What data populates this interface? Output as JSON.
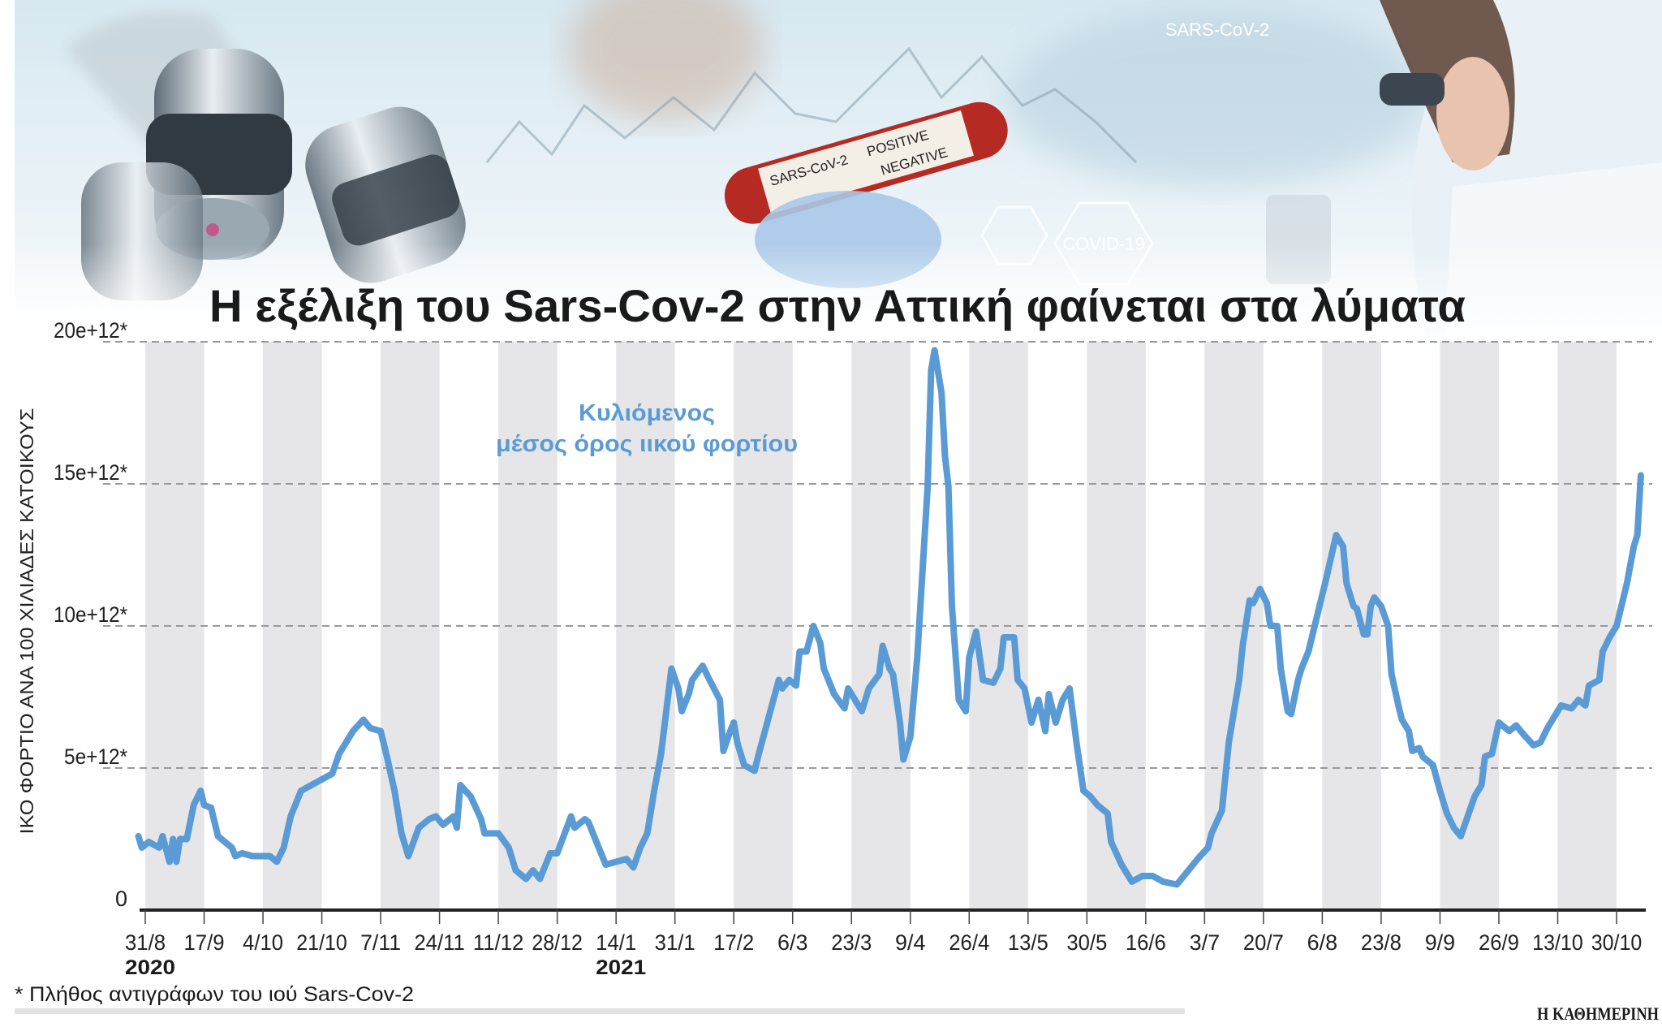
{
  "header_photo": {
    "labels": [
      "SARS-CoV-2",
      "POSITIVE",
      "NEGATIVE",
      "SARS-CoV-2",
      "COVID-19"
    ],
    "colors": {
      "sky": "#dfeef5",
      "steel": "#8a9aa6",
      "tube_red": "#c0392b",
      "glove": "#a9c8e8"
    }
  },
  "title": "Η εξέλιξη του Sars-Cov-2 στην Αττική φαίνεται στα λύματα",
  "footnote": "* Πλήθος αντιγράφων του ιού Sars-Cov-2",
  "brand": "Η ΚΑΘΗΜΕΡΙΝΗ",
  "chart_data": {
    "type": "line",
    "title": "Η εξέλιξη του Sars-Cov-2 στην Αττική φαίνεται στα λύματα",
    "ylabel": "ΙΚΟ ΦΟΡΤΙΟ ΑΝΑ 100 ΧΙΛΙΑΔΕΣ ΚΑΤΟΙΚΟΥΣ",
    "xlabel": "",
    "y_unit_multiplier": "e+12",
    "ylim": [
      0,
      20
    ],
    "yticks": [
      {
        "value": 0,
        "label": "0"
      },
      {
        "value": 5,
        "label": "5e+12*"
      },
      {
        "value": 10,
        "label": "10e+12*"
      },
      {
        "value": 15,
        "label": "15e+12*"
      },
      {
        "value": 20,
        "label": "20e+12*"
      }
    ],
    "xticks": [
      "31/8",
      "17/9",
      "4/10",
      "21/10",
      "7/11",
      "24/11",
      "11/12",
      "28/12",
      "14/1",
      "31/1",
      "17/2",
      "6/3",
      "23/3",
      "9/4",
      "26/4",
      "13/5",
      "30/5",
      "16/6",
      "3/7",
      "20/7",
      "6/8",
      "23/8",
      "9/9",
      "26/9",
      "13/10",
      "30/10"
    ],
    "year_labels": [
      {
        "label": "2020",
        "at_tick": "31/8"
      },
      {
        "label": "2021",
        "at_tick": "14/1"
      }
    ],
    "grid": "horizontal dashed",
    "background": "alternating grey/white vertical bands between ticks",
    "annotation": {
      "line1": "Κυλιόμενος",
      "line2": "μέσος όρος ιικού φορτίου"
    },
    "series": [
      {
        "name": "Κυλιόμενος μέσος όρος ιικού φορτίου",
        "color": "#5b9bd5",
        "points": [
          [
            "2020-08-29",
            2.6
          ],
          [
            "2020-08-30",
            2.2
          ],
          [
            "2020-09-01",
            2.4
          ],
          [
            "2020-09-04",
            2.2
          ],
          [
            "2020-09-05",
            2.6
          ],
          [
            "2020-09-07",
            1.7
          ],
          [
            "2020-09-08",
            2.5
          ],
          [
            "2020-09-09",
            1.7
          ],
          [
            "2020-09-10",
            2.5
          ],
          [
            "2020-09-12",
            2.5
          ],
          [
            "2020-09-14",
            3.7
          ],
          [
            "2020-09-16",
            4.2
          ],
          [
            "2020-09-17",
            3.7
          ],
          [
            "2020-09-19",
            3.6
          ],
          [
            "2020-09-21",
            2.6
          ],
          [
            "2020-09-25",
            2.2
          ],
          [
            "2020-09-26",
            1.9
          ],
          [
            "2020-09-28",
            2.0
          ],
          [
            "2020-10-01",
            1.9
          ],
          [
            "2020-10-06",
            1.9
          ],
          [
            "2020-10-08",
            1.7
          ],
          [
            "2020-10-10",
            2.2
          ],
          [
            "2020-10-12",
            3.3
          ],
          [
            "2020-10-15",
            4.2
          ],
          [
            "2020-10-18",
            4.4
          ],
          [
            "2020-10-21",
            4.6
          ],
          [
            "2020-10-24",
            4.8
          ],
          [
            "2020-10-26",
            5.5
          ],
          [
            "2020-10-30",
            6.3
          ],
          [
            "2020-11-02",
            6.7
          ],
          [
            "2020-11-04",
            6.4
          ],
          [
            "2020-11-07",
            6.3
          ],
          [
            "2020-11-09",
            5.3
          ],
          [
            "2020-11-11",
            4.2
          ],
          [
            "2020-11-13",
            2.7
          ],
          [
            "2020-11-15",
            1.9
          ],
          [
            "2020-11-18",
            2.9
          ],
          [
            "2020-11-21",
            3.2
          ],
          [
            "2020-11-23",
            3.3
          ],
          [
            "2020-11-25",
            3.0
          ],
          [
            "2020-11-28",
            3.3
          ],
          [
            "2020-11-29",
            2.9
          ],
          [
            "2020-11-30",
            4.4
          ],
          [
            "2020-12-03",
            4.0
          ],
          [
            "2020-12-06",
            3.2
          ],
          [
            "2020-12-07",
            2.7
          ],
          [
            "2020-12-11",
            2.7
          ],
          [
            "2020-12-14",
            2.2
          ],
          [
            "2020-12-16",
            1.4
          ],
          [
            "2020-12-19",
            1.1
          ],
          [
            "2020-12-21",
            1.4
          ],
          [
            "2020-12-23",
            1.1
          ],
          [
            "2020-12-26",
            2.0
          ],
          [
            "2020-12-28",
            2.0
          ],
          [
            "2021-01-01",
            3.3
          ],
          [
            "2021-01-02",
            2.9
          ],
          [
            "2021-01-05",
            3.2
          ],
          [
            "2021-01-06",
            3.1
          ],
          [
            "2021-01-09",
            2.2
          ],
          [
            "2021-01-11",
            1.6
          ],
          [
            "2021-01-14",
            1.7
          ],
          [
            "2021-01-17",
            1.8
          ],
          [
            "2021-01-19",
            1.5
          ],
          [
            "2021-01-21",
            2.2
          ],
          [
            "2021-01-23",
            2.7
          ],
          [
            "2021-01-25",
            4.2
          ],
          [
            "2021-01-27",
            5.5
          ],
          [
            "2021-01-30",
            8.5
          ],
          [
            "2021-02-01",
            7.8
          ],
          [
            "2021-02-02",
            7.0
          ],
          [
            "2021-02-04",
            7.6
          ],
          [
            "2021-02-05",
            8.1
          ],
          [
            "2021-02-08",
            8.6
          ],
          [
            "2021-02-10",
            8.1
          ],
          [
            "2021-02-13",
            7.4
          ],
          [
            "2021-02-14",
            5.6
          ],
          [
            "2021-02-16",
            6.3
          ],
          [
            "2021-02-17",
            6.6
          ],
          [
            "2021-02-18",
            5.9
          ],
          [
            "2021-02-20",
            5.1
          ],
          [
            "2021-02-23",
            4.9
          ],
          [
            "2021-02-24",
            5.4
          ],
          [
            "2021-02-26",
            6.3
          ],
          [
            "2021-02-28",
            7.2
          ],
          [
            "2021-03-02",
            8.1
          ],
          [
            "2021-03-03",
            7.8
          ],
          [
            "2021-03-05",
            8.1
          ],
          [
            "2021-03-07",
            7.9
          ],
          [
            "2021-03-08",
            9.1
          ],
          [
            "2021-03-10",
            9.1
          ],
          [
            "2021-03-12",
            10.0
          ],
          [
            "2021-03-14",
            9.4
          ],
          [
            "2021-03-15",
            8.5
          ],
          [
            "2021-03-18",
            7.6
          ],
          [
            "2021-03-21",
            7.1
          ],
          [
            "2021-03-22",
            7.8
          ],
          [
            "2021-03-25",
            7.2
          ],
          [
            "2021-03-26",
            7.0
          ],
          [
            "2021-03-28",
            7.8
          ],
          [
            "2021-03-31",
            8.3
          ],
          [
            "2021-04-01",
            9.3
          ],
          [
            "2021-04-03",
            8.5
          ],
          [
            "2021-04-04",
            8.3
          ],
          [
            "2021-04-06",
            6.6
          ],
          [
            "2021-04-07",
            5.3
          ],
          [
            "2021-04-09",
            6.1
          ],
          [
            "2021-04-11",
            8.9
          ],
          [
            "2021-04-14",
            14.9
          ],
          [
            "2021-04-15",
            19.0
          ],
          [
            "2021-04-16",
            19.7
          ],
          [
            "2021-04-18",
            18.2
          ],
          [
            "2021-04-19",
            16.0
          ],
          [
            "2021-04-20",
            14.9
          ],
          [
            "2021-04-21",
            10.7
          ],
          [
            "2021-04-23",
            7.4
          ],
          [
            "2021-04-25",
            7.0
          ],
          [
            "2021-04-26",
            8.9
          ],
          [
            "2021-04-28",
            9.8
          ],
          [
            "2021-04-30",
            8.1
          ],
          [
            "2021-05-03",
            8.0
          ],
          [
            "2021-05-05",
            8.5
          ],
          [
            "2021-05-06",
            9.6
          ],
          [
            "2021-05-09",
            9.6
          ],
          [
            "2021-05-10",
            8.1
          ],
          [
            "2021-05-12",
            7.8
          ],
          [
            "2021-05-14",
            6.6
          ],
          [
            "2021-05-16",
            7.4
          ],
          [
            "2021-05-18",
            6.3
          ],
          [
            "2021-05-19",
            7.6
          ],
          [
            "2021-05-21",
            6.6
          ],
          [
            "2021-05-23",
            7.4
          ],
          [
            "2021-05-25",
            7.8
          ],
          [
            "2021-05-27",
            5.9
          ],
          [
            "2021-05-29",
            4.2
          ],
          [
            "2021-05-31",
            4.0
          ],
          [
            "2021-06-02",
            3.7
          ],
          [
            "2021-06-05",
            3.4
          ],
          [
            "2021-06-06",
            2.4
          ],
          [
            "2021-06-09",
            1.6
          ],
          [
            "2021-06-12",
            1.0
          ],
          [
            "2021-06-15",
            1.2
          ],
          [
            "2021-06-18",
            1.2
          ],
          [
            "2021-06-21",
            1.0
          ],
          [
            "2021-06-25",
            0.9
          ],
          [
            "2021-06-27",
            1.2
          ],
          [
            "2021-07-01",
            1.8
          ],
          [
            "2021-07-04",
            2.2
          ],
          [
            "2021-07-05",
            2.7
          ],
          [
            "2021-07-08",
            3.5
          ],
          [
            "2021-07-10",
            5.9
          ],
          [
            "2021-07-13",
            8.1
          ],
          [
            "2021-07-14",
            9.3
          ],
          [
            "2021-07-16",
            10.9
          ],
          [
            "2021-07-17",
            10.8
          ],
          [
            "2021-07-19",
            11.3
          ],
          [
            "2021-07-21",
            10.8
          ],
          [
            "2021-07-22",
            10.0
          ],
          [
            "2021-07-24",
            10.0
          ],
          [
            "2021-07-25",
            8.5
          ],
          [
            "2021-07-27",
            7.0
          ],
          [
            "2021-07-28",
            6.9
          ],
          [
            "2021-07-30",
            8.1
          ],
          [
            "2021-07-31",
            8.5
          ],
          [
            "2021-08-02",
            9.1
          ],
          [
            "2021-08-03",
            9.6
          ],
          [
            "2021-08-05",
            10.6
          ],
          [
            "2021-08-07",
            11.6
          ],
          [
            "2021-08-10",
            13.2
          ],
          [
            "2021-08-12",
            12.8
          ],
          [
            "2021-08-13",
            11.5
          ],
          [
            "2021-08-15",
            10.7
          ],
          [
            "2021-08-16",
            10.6
          ],
          [
            "2021-08-18",
            9.7
          ],
          [
            "2021-08-19",
            9.7
          ],
          [
            "2021-08-20",
            10.7
          ],
          [
            "2021-08-21",
            11.0
          ],
          [
            "2021-08-23",
            10.7
          ],
          [
            "2021-08-25",
            10.0
          ],
          [
            "2021-08-26",
            8.3
          ],
          [
            "2021-08-28",
            7.2
          ],
          [
            "2021-08-29",
            6.7
          ],
          [
            "2021-08-31",
            6.3
          ],
          [
            "2021-09-01",
            5.6
          ],
          [
            "2021-09-03",
            5.7
          ],
          [
            "2021-09-04",
            5.4
          ],
          [
            "2021-09-07",
            5.1
          ],
          [
            "2021-09-09",
            4.2
          ],
          [
            "2021-09-11",
            3.4
          ],
          [
            "2021-09-13",
            2.9
          ],
          [
            "2021-09-15",
            2.6
          ],
          [
            "2021-09-17",
            3.3
          ],
          [
            "2021-09-19",
            4.0
          ],
          [
            "2021-09-21",
            4.4
          ],
          [
            "2021-09-22",
            5.4
          ],
          [
            "2021-09-24",
            5.5
          ],
          [
            "2021-09-26",
            6.6
          ],
          [
            "2021-09-29",
            6.3
          ],
          [
            "2021-10-01",
            6.5
          ],
          [
            "2021-10-03",
            6.2
          ],
          [
            "2021-10-06",
            5.8
          ],
          [
            "2021-10-08",
            5.9
          ],
          [
            "2021-10-10",
            6.4
          ],
          [
            "2021-10-12",
            6.8
          ],
          [
            "2021-10-14",
            7.2
          ],
          [
            "2021-10-17",
            7.1
          ],
          [
            "2021-10-19",
            7.4
          ],
          [
            "2021-10-21",
            7.2
          ],
          [
            "2021-10-22",
            7.9
          ],
          [
            "2021-10-25",
            8.1
          ],
          [
            "2021-10-26",
            9.1
          ],
          [
            "2021-10-28",
            9.6
          ],
          [
            "2021-10-30",
            10.0
          ],
          [
            "2021-10-31",
            10.5
          ],
          [
            "2021-11-02",
            11.5
          ],
          [
            "2021-11-04",
            12.8
          ],
          [
            "2021-11-05",
            13.2
          ],
          [
            "2021-11-06",
            15.3
          ]
        ]
      }
    ]
  }
}
